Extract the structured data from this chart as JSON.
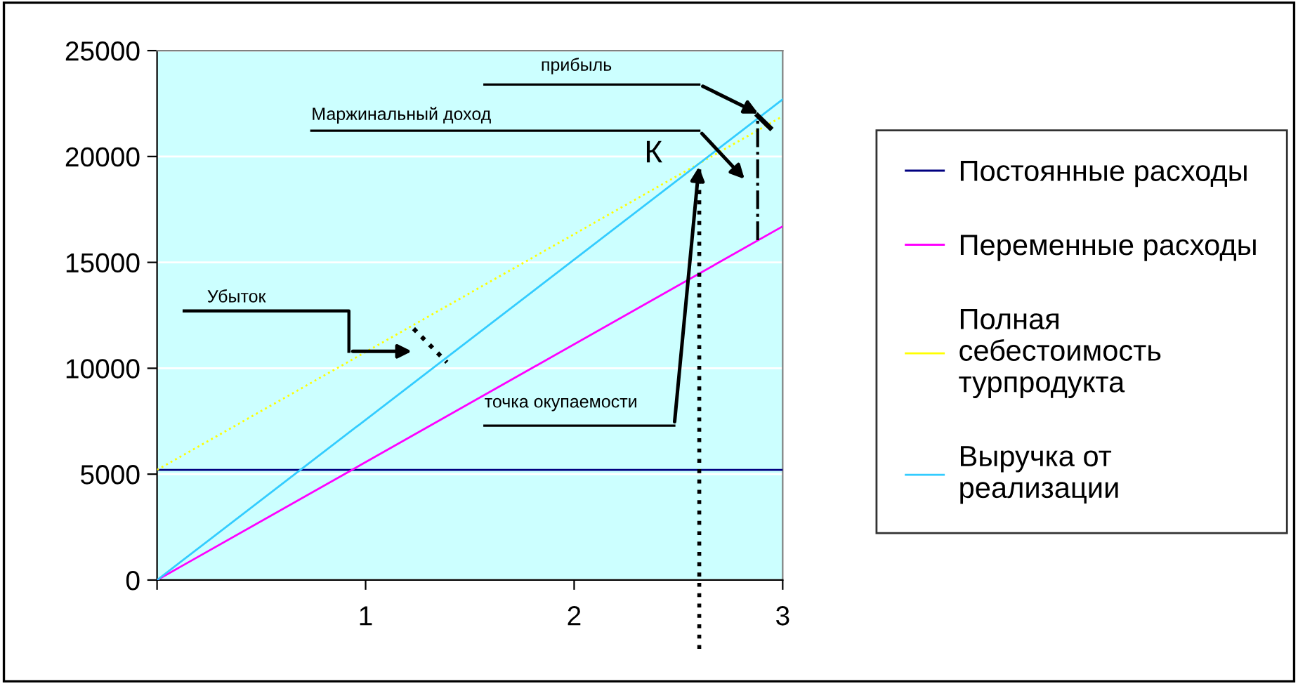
{
  "chart_data": {
    "type": "line",
    "xlim": [
      0,
      3
    ],
    "xticks": [
      {
        "value": 0,
        "label": null
      },
      1,
      2,
      3
    ],
    "ylim": [
      0,
      25000
    ],
    "yticks": [
      0,
      5000,
      10000,
      15000,
      20000,
      25000
    ],
    "grid": "y",
    "legend": "right",
    "marker": "none",
    "series": [
      {
        "name": "Постоянные расходы",
        "color": "#000080",
        "values": [
          5200,
          5200
        ]
      },
      {
        "name": "Переменные расходы",
        "color": "#ff00ff",
        "values": [
          0,
          16700
        ]
      },
      {
        "name": "Полная себестоимость турпродукта",
        "color": "#ffff00",
        "values": [
          5200,
          21900
        ],
        "line_style": "dotted"
      },
      {
        "name": "Выручка от реализации",
        "color": "#33ccff",
        "values": [
          0,
          22700
        ]
      }
    ],
    "x": [
      0,
      3
    ],
    "ref_lines": [
      {
        "axis": "x",
        "value": 2.6,
        "color": "#000000",
        "line_style": "dotted"
      }
    ],
    "annotations": [
      "прибыль",
      "Маржинальный доход",
      "К",
      "Убыток",
      "точка окупаемости"
    ]
  }
}
